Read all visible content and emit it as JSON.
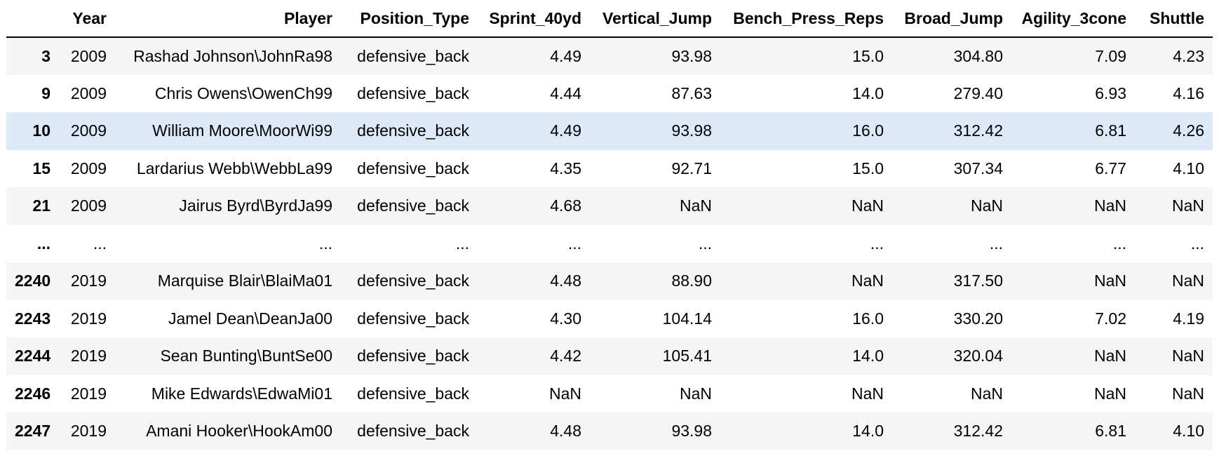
{
  "table": {
    "columns": [
      "",
      "Year",
      "Player",
      "Position_Type",
      "Sprint_40yd",
      "Vertical_Jump",
      "Bench_Press_Reps",
      "Broad_Jump",
      "Agility_3cone",
      "Shuttle"
    ],
    "rows": [
      {
        "index": "3",
        "cells": [
          "2009",
          "Rashad Johnson\\JohnRa98",
          "defensive_back",
          "4.49",
          "93.98",
          "15.0",
          "304.80",
          "7.09",
          "4.23"
        ]
      },
      {
        "index": "9",
        "cells": [
          "2009",
          "Chris Owens\\OwenCh99",
          "defensive_back",
          "4.44",
          "87.63",
          "14.0",
          "279.40",
          "6.93",
          "4.16"
        ]
      },
      {
        "index": "10",
        "cells": [
          "2009",
          "William Moore\\MoorWi99",
          "defensive_back",
          "4.49",
          "93.98",
          "16.0",
          "312.42",
          "6.81",
          "4.26"
        ]
      },
      {
        "index": "15",
        "cells": [
          "2009",
          "Lardarius Webb\\WebbLa99",
          "defensive_back",
          "4.35",
          "92.71",
          "15.0",
          "307.34",
          "6.77",
          "4.10"
        ]
      },
      {
        "index": "21",
        "cells": [
          "2009",
          "Jairus Byrd\\ByrdJa99",
          "defensive_back",
          "4.68",
          "NaN",
          "NaN",
          "NaN",
          "NaN",
          "NaN"
        ]
      },
      {
        "index": "...",
        "cells": [
          "...",
          "...",
          "...",
          "...",
          "...",
          "...",
          "...",
          "...",
          "..."
        ]
      },
      {
        "index": "2240",
        "cells": [
          "2019",
          "Marquise Blair\\BlaiMa01",
          "defensive_back",
          "4.48",
          "88.90",
          "NaN",
          "317.50",
          "NaN",
          "NaN"
        ]
      },
      {
        "index": "2243",
        "cells": [
          "2019",
          "Jamel Dean\\DeanJa00",
          "defensive_back",
          "4.30",
          "104.14",
          "16.0",
          "330.20",
          "7.02",
          "4.19"
        ]
      },
      {
        "index": "2244",
        "cells": [
          "2019",
          "Sean Bunting\\BuntSe00",
          "defensive_back",
          "4.42",
          "105.41",
          "14.0",
          "320.04",
          "NaN",
          "NaN"
        ]
      },
      {
        "index": "2246",
        "cells": [
          "2019",
          "Mike Edwards\\EdwaMi01",
          "defensive_back",
          "NaN",
          "NaN",
          "NaN",
          "NaN",
          "NaN",
          "NaN"
        ]
      },
      {
        "index": "2247",
        "cells": [
          "2019",
          "Amani Hooker\\HookAm00",
          "defensive_back",
          "4.48",
          "93.98",
          "14.0",
          "312.42",
          "6.81",
          "4.10"
        ]
      }
    ],
    "hover_row": 2
  },
  "colors": {
    "striped_row": "#f5f5f5",
    "plain_row": "#ffffff",
    "hover_row": "#dde9f8",
    "header_rule": "#000000"
  }
}
